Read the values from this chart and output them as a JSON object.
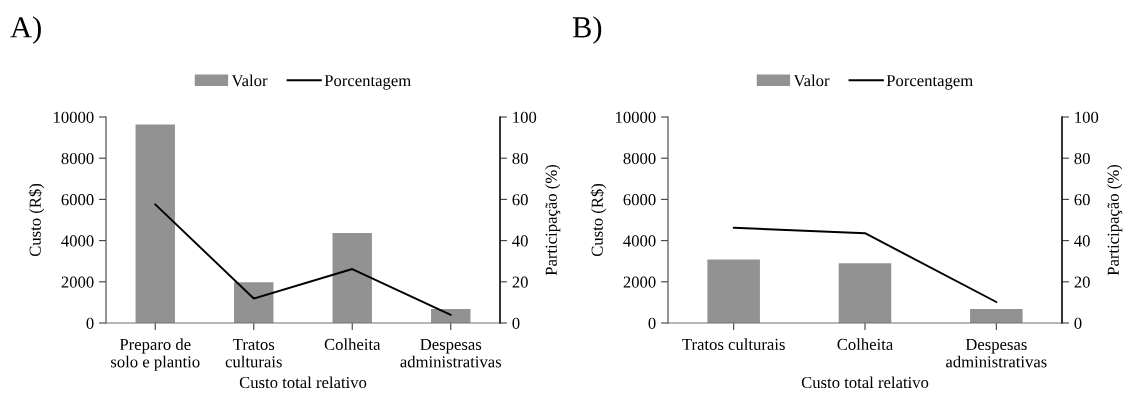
{
  "chart_data": [
    {
      "type": "bar",
      "title": "A)",
      "categories": [
        "Preparo de\nsolo e plantio",
        "Tratos\nculturais",
        "Colheita",
        "Despesas\nadministrativas"
      ],
      "xlabel": "Custo total relativo",
      "ylabel": "Custo (R$)",
      "y2label": "Participação (%)",
      "ylim": [
        0,
        10000
      ],
      "yticks": [
        0,
        2000,
        4000,
        6000,
        8000,
        10000
      ],
      "y2lim": [
        0,
        100
      ],
      "y2ticks": [
        0,
        20,
        40,
        60,
        80,
        100
      ],
      "legend": "top",
      "series": [
        {
          "name": "Valor",
          "color": "#929292",
          "values": [
            9640,
            1980,
            4370,
            680
          ]
        },
        {
          "name": "Porcentagem",
          "type": "line",
          "axis": "y2",
          "color": "#000000",
          "values": [
            57.6,
            11.9,
            26.2,
            4.0
          ]
        }
      ]
    },
    {
      "type": "bar",
      "title": "B)",
      "categories": [
        "Tratos culturais",
        "Colheita",
        "Despesas\nadministrativas"
      ],
      "xlabel": "Custo total relativo",
      "ylabel": "Custo (R$)",
      "y2label": "Participação (%)",
      "ylim": [
        0,
        10000
      ],
      "yticks": [
        0,
        2000,
        4000,
        6000,
        8000,
        10000
      ],
      "y2lim": [
        0,
        100
      ],
      "y2ticks": [
        0,
        20,
        40,
        60,
        80,
        100
      ],
      "legend": "top",
      "series": [
        {
          "name": "Valor",
          "color": "#929292",
          "values": [
            3080,
            2900,
            680
          ]
        },
        {
          "name": "Porcentagem",
          "type": "line",
          "axis": "y2",
          "color": "#000000",
          "values": [
            46.2,
            43.6,
            10.2
          ]
        }
      ]
    }
  ]
}
